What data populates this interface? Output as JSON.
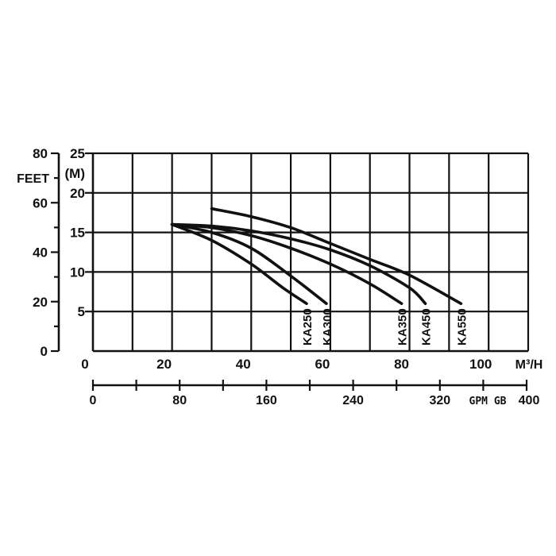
{
  "chart_data": {
    "type": "line",
    "title": "",
    "feet_axis": {
      "unit_top": "80",
      "label": "FEET",
      "ticks": [
        "60",
        "40",
        "20",
        "0"
      ],
      "range": [
        0,
        80
      ]
    },
    "y_axis": {
      "label": "(M)",
      "range": [
        0,
        25
      ],
      "ticks": [
        "25",
        "20",
        "15",
        "10",
        "5"
      ]
    },
    "x_axis": {
      "label": "M³/H",
      "range": [
        0,
        110
      ],
      "ticks": [
        "0",
        "20",
        "40",
        "60",
        "80",
        "100"
      ]
    },
    "gpm_axis": {
      "label": "GPM GB",
      "range": [
        0,
        400
      ],
      "ticks": [
        "0",
        "80",
        "160",
        "240",
        "320",
        "400"
      ]
    },
    "grid": true,
    "series": [
      {
        "name": "KA250",
        "x": [
          20,
          30,
          40,
          48,
          54
        ],
        "y": [
          16,
          14,
          11,
          8,
          6
        ]
      },
      {
        "name": "KA300",
        "x": [
          20,
          30,
          40,
          50,
          59
        ],
        "y": [
          16,
          15,
          13,
          9.5,
          6
        ]
      },
      {
        "name": "KA350",
        "x": [
          20,
          30,
          40,
          50,
          60,
          70,
          78
        ],
        "y": [
          16,
          15.6,
          14.6,
          13,
          11,
          8.5,
          6
        ]
      },
      {
        "name": "KA450",
        "x": [
          20,
          30,
          40,
          50,
          60,
          70,
          80,
          84
        ],
        "y": [
          16,
          15.8,
          15.2,
          14.2,
          12.8,
          10.8,
          8,
          6
        ]
      },
      {
        "name": "KA550",
        "x": [
          30,
          40,
          50,
          60,
          70,
          80,
          93
        ],
        "y": [
          18,
          17,
          15.6,
          13.6,
          11.6,
          9.6,
          6
        ]
      }
    ]
  }
}
